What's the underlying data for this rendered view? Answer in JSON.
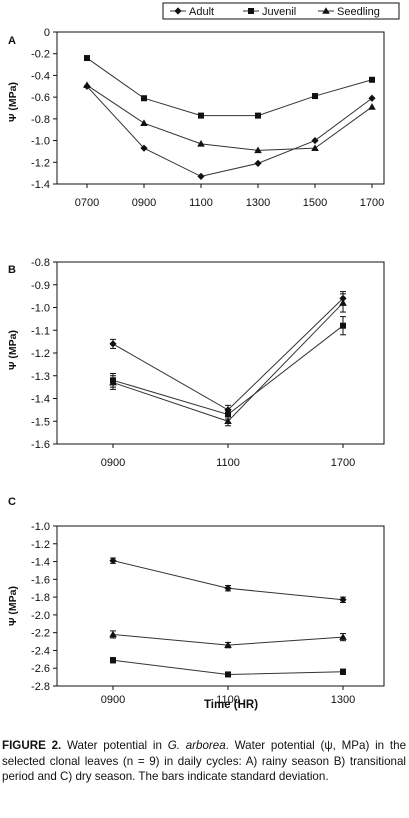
{
  "legend": {
    "placement": "top-right"
  },
  "shared": {
    "ylabel": "Ψ (MPa)",
    "xlabel": "Time (HR)"
  },
  "chart_data": [
    {
      "type": "line",
      "panel_label": "A",
      "categories": [
        "0700",
        "0900",
        "1100",
        "1300",
        "1500",
        "1700"
      ],
      "ylim": [
        -1.4,
        0
      ],
      "yticks": [
        "0",
        "-0.2",
        "-0.4",
        "-0.6",
        "-0.8",
        "-1.0",
        "-1.2",
        "-1.4"
      ],
      "ytick_values": [
        0,
        -0.2,
        -0.4,
        -0.6,
        -0.8,
        -1.0,
        -1.2,
        -1.4
      ],
      "grid": false,
      "legend_visible": true,
      "series": [
        {
          "name": "Adult",
          "marker": "diamond",
          "values": [
            -0.5,
            -1.07,
            -1.33,
            -1.21,
            -1.0,
            -0.61
          ]
        },
        {
          "name": "Juvenil",
          "marker": "square",
          "values": [
            -0.24,
            -0.61,
            -0.77,
            -0.77,
            -0.59,
            -0.44
          ]
        },
        {
          "name": "Seedling",
          "marker": "triangle",
          "values": [
            -0.49,
            -0.84,
            -1.03,
            -1.09,
            -1.07,
            -0.69
          ]
        }
      ]
    },
    {
      "type": "line",
      "panel_label": "B",
      "categories": [
        "0900",
        "1100",
        "1700"
      ],
      "ylim": [
        -1.6,
        -0.8
      ],
      "yticks": [
        "-0.8",
        "-0.9",
        "-1.0",
        "-1.1",
        "-1.2",
        "-1.3",
        "-1.4",
        "-1.5",
        "-1.6"
      ],
      "ytick_values": [
        -0.8,
        -0.9,
        -1.0,
        -1.1,
        -1.2,
        -1.3,
        -1.4,
        -1.5,
        -1.6
      ],
      "grid": false,
      "legend_visible": false,
      "series": [
        {
          "name": "Adult",
          "marker": "diamond",
          "values": [
            -1.16,
            -1.45,
            -0.96
          ],
          "errors": [
            0.02,
            0.02,
            0.03
          ]
        },
        {
          "name": "Juvenil",
          "marker": "square",
          "values": [
            -1.32,
            -1.47,
            -1.08
          ],
          "errors": [
            0.03,
            0.02,
            0.04
          ]
        },
        {
          "name": "Seedling",
          "marker": "triangle",
          "values": [
            -1.33,
            -1.5,
            -0.98
          ],
          "errors": [
            0.03,
            0.02,
            0.04
          ]
        }
      ]
    },
    {
      "type": "line",
      "panel_label": "C",
      "categories": [
        "0900",
        "1100",
        "1300"
      ],
      "ylim": [
        -2.8,
        -1.0
      ],
      "yticks": [
        "-1.0",
        "-1.2",
        "-1.4",
        "-1.6",
        "-1.8",
        "-2.0",
        "-2.2",
        "-2.4",
        "-2.6",
        "-2.8"
      ],
      "ytick_values": [
        -1.0,
        -1.2,
        -1.4,
        -1.6,
        -1.8,
        -2.0,
        -2.2,
        -2.4,
        -2.6,
        -2.8
      ],
      "grid": false,
      "legend_visible": false,
      "series": [
        {
          "name": "Adult",
          "marker": "diamond",
          "values": [
            -1.39,
            -1.7,
            -1.83
          ],
          "errors": [
            0.03,
            0.03,
            0.03
          ]
        },
        {
          "name": "Juvenil",
          "marker": "square",
          "values": [
            -2.51,
            -2.67,
            -2.64
          ],
          "errors": [
            0.03,
            0.02,
            0.03
          ]
        },
        {
          "name": "Seedling",
          "marker": "triangle",
          "values": [
            -2.22,
            -2.34,
            -2.25
          ],
          "errors": [
            0.04,
            0.03,
            0.04
          ]
        }
      ]
    }
  ],
  "caption": {
    "label": "FIGURE 2.",
    "text_1": " Water potential in ",
    "species": "G. arborea",
    "text_2": ". Water potential (ψ, MPa) in the selected clonal leaves (n = 9) in daily cycles: A) rainy season B) transitional period and C) dry season. The bars indicate standard deviation."
  }
}
